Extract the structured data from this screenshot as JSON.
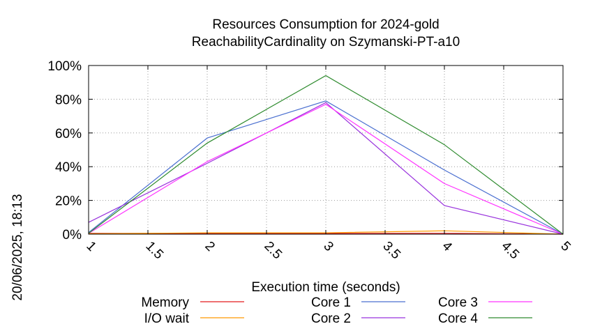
{
  "chart_data": {
    "type": "line",
    "title_line1": "Resources Consumption for 2024-gold",
    "title_line2": "ReachabilityCardinality on Szymanski-PT-a10",
    "xlabel": "Execution time (seconds)",
    "ylabel": "",
    "timestamp": "20/06/2025, 18:13",
    "xlim": [
      1,
      5
    ],
    "ylim": [
      0,
      100
    ],
    "x_ticks": [
      1,
      1.5,
      2,
      2.5,
      3,
      3.5,
      4,
      4.5,
      5
    ],
    "x_tick_labels": [
      "1",
      "1.5",
      "2",
      "2.5",
      "3",
      "3.5",
      "4",
      "4.5",
      "5"
    ],
    "y_ticks": [
      0,
      20,
      40,
      60,
      80,
      100
    ],
    "y_tick_labels": [
      "0%",
      "20%",
      "40%",
      "60%",
      "80%",
      "100%"
    ],
    "grid": true,
    "legend_position": "bottom",
    "series": [
      {
        "name": "Memory",
        "color": "#e41a1c",
        "x": [
          1,
          2,
          3,
          4,
          5
        ],
        "y": [
          0.5,
          0.4,
          0.4,
          0.5,
          0
        ]
      },
      {
        "name": "I/O wait",
        "color": "#ff9900",
        "x": [
          1,
          2,
          3,
          4,
          5
        ],
        "y": [
          0.2,
          0.8,
          0.8,
          2.0,
          0
        ]
      },
      {
        "name": "Core 1",
        "color": "#4a6fd0",
        "x": [
          1,
          2,
          3,
          4,
          5
        ],
        "y": [
          1.0,
          57.0,
          79.0,
          38.0,
          0
        ]
      },
      {
        "name": "Core 2",
        "color": "#9933dd",
        "x": [
          1,
          2,
          3,
          4,
          5
        ],
        "y": [
          7.0,
          42.0,
          78.0,
          17.0,
          0
        ]
      },
      {
        "name": "Core 3",
        "color": "#ff33ff",
        "x": [
          1,
          2,
          3,
          4,
          5
        ],
        "y": [
          0.5,
          43.0,
          77.0,
          30.0,
          0
        ]
      },
      {
        "name": "Core 4",
        "color": "#2e8b2e",
        "x": [
          1,
          2,
          3,
          4,
          5
        ],
        "y": [
          0.5,
          54.0,
          94.0,
          53.0,
          0
        ]
      }
    ]
  }
}
